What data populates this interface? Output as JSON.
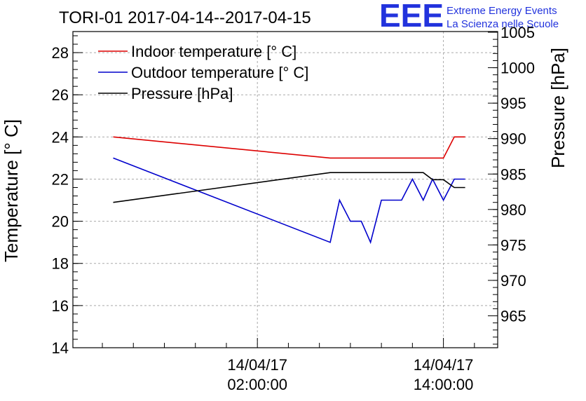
{
  "title": "TORI-01 2017-04-14--2017-04-15",
  "logo": {
    "mark": "EEE",
    "line1": "Extreme Energy Events",
    "line2": "La Scienza nelle Scuole"
  },
  "chart_data": {
    "type": "line",
    "xlabel": "",
    "x_ticks": [
      {
        "date": "14/04/17",
        "time": "02:00:00",
        "hours": 2
      },
      {
        "date": "14/04/17",
        "time": "14:00:00",
        "hours": 14
      }
    ],
    "x_range_hours": [
      -9.9,
      17.5
    ],
    "y_left": {
      "label": "Temperature [° C]",
      "range": [
        14,
        29
      ],
      "ticks": [
        14,
        16,
        18,
        20,
        22,
        24,
        26,
        28
      ]
    },
    "y_right": {
      "label": "Pressure [hPa]",
      "range": [
        960.5,
        1005.1
      ],
      "ticks": [
        965,
        970,
        975,
        980,
        985,
        990,
        995,
        1000,
        1005
      ]
    },
    "grid": true,
    "legend": "top-left",
    "series": [
      {
        "name": "Indoor temperature [° C]",
        "axis": "left",
        "color": "#dd0000",
        "x": [
          -7.3,
          6.7,
          14,
          14.7,
          15.4
        ],
        "y": [
          24,
          23,
          23,
          24,
          24
        ]
      },
      {
        "name": "Outdoor temperature [° C]",
        "axis": "left",
        "color": "#0000cc",
        "x": [
          -7.3,
          6.7,
          7.3,
          8,
          8.7,
          9.3,
          10,
          10.7,
          11.3,
          12,
          12.7,
          13.3,
          14,
          14.7,
          15.4
        ],
        "y": [
          23,
          19,
          21,
          20,
          20,
          19,
          21,
          21,
          21,
          22,
          21,
          22,
          21,
          22,
          22
        ]
      },
      {
        "name": "Pressure [hPa]",
        "axis": "right",
        "color": "#000000",
        "x": [
          -7.3,
          6.7,
          10.5,
          12.7,
          13.3,
          14,
          14.7,
          15.4
        ],
        "y": [
          981,
          985.2,
          985.2,
          985.2,
          984.2,
          984.2,
          983.1,
          983.1
        ]
      }
    ]
  }
}
